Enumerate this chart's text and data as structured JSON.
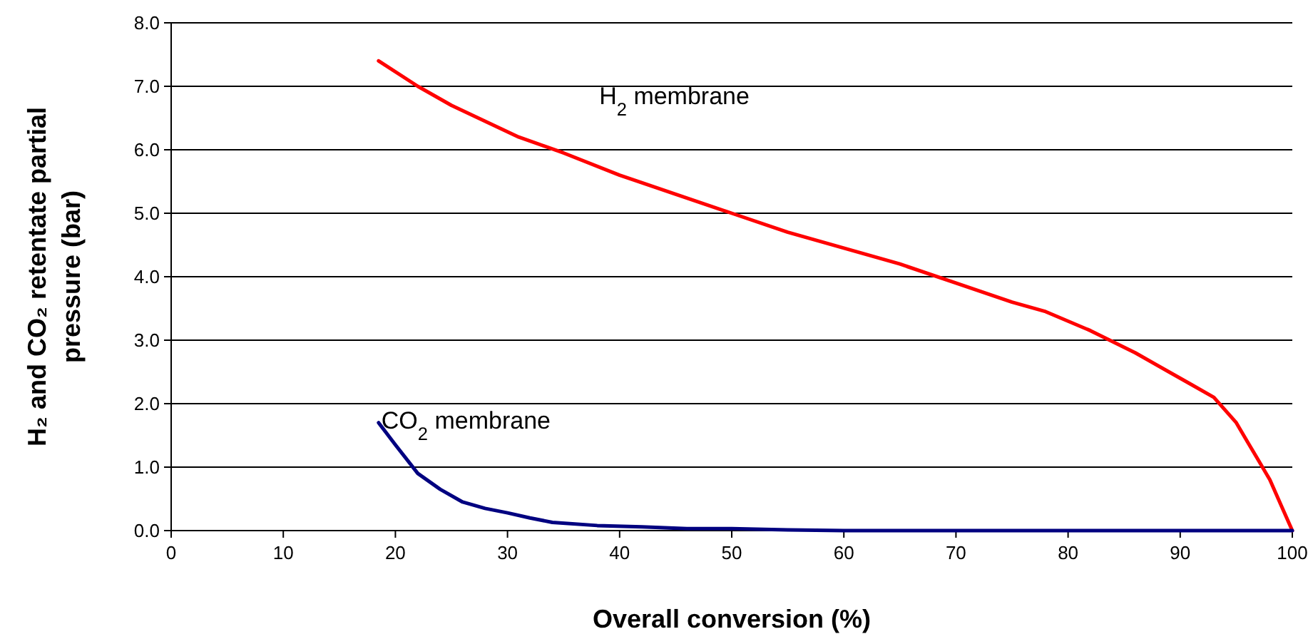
{
  "chart_data": {
    "type": "line",
    "xlabel": "Overall conversion (%)",
    "ylabel": "H₂ and CO₂ retentate partial pressure (bar)",
    "xlim": [
      0,
      100
    ],
    "xticks": [
      0,
      10,
      20,
      30,
      40,
      50,
      60,
      70,
      80,
      90,
      100
    ],
    "ylim": [
      0,
      8
    ],
    "yticks": [
      {
        "value": 0,
        "label": "0.0"
      },
      {
        "value": 1,
        "label": "1.0"
      },
      {
        "value": 2,
        "label": "2.0"
      },
      {
        "value": 3,
        "label": "3.0"
      },
      {
        "value": 4,
        "label": "4.0"
      },
      {
        "value": 5,
        "label": "5.0"
      },
      {
        "value": 6,
        "label": "6.0"
      },
      {
        "value": 7,
        "label": "7.0"
      },
      {
        "value": 8,
        "label": "8.0"
      }
    ],
    "grid": "y",
    "marker": "none",
    "line_style": "solid",
    "series": [
      {
        "name": "H$_{2}$ membrane",
        "color": "#ff0000",
        "x": [
          18.5,
          22,
          25,
          28,
          31,
          35,
          40,
          45,
          50,
          55,
          60,
          65,
          70,
          75,
          78,
          82,
          86,
          89,
          91,
          93,
          94,
          95,
          96,
          97,
          98,
          99,
          100
        ],
        "values": [
          7.4,
          7.0,
          6.7,
          6.45,
          6.2,
          5.95,
          5.6,
          5.3,
          5.0,
          4.7,
          4.45,
          4.2,
          3.9,
          3.6,
          3.45,
          3.15,
          2.8,
          2.5,
          2.3,
          2.1,
          1.9,
          1.7,
          1.4,
          1.1,
          0.8,
          0.4,
          0.0
        ]
      },
      {
        "name": "CO$_{2}$ membrane",
        "color": "#000080",
        "x": [
          18.5,
          20,
          22,
          24,
          26,
          28,
          30,
          32,
          34,
          38,
          42,
          46,
          50,
          55,
          60,
          80,
          100
        ],
        "values": [
          1.7,
          1.35,
          0.9,
          0.65,
          0.45,
          0.35,
          0.28,
          0.2,
          0.13,
          0.08,
          0.06,
          0.03,
          0.03,
          0.01,
          0,
          0,
          0
        ]
      }
    ]
  }
}
